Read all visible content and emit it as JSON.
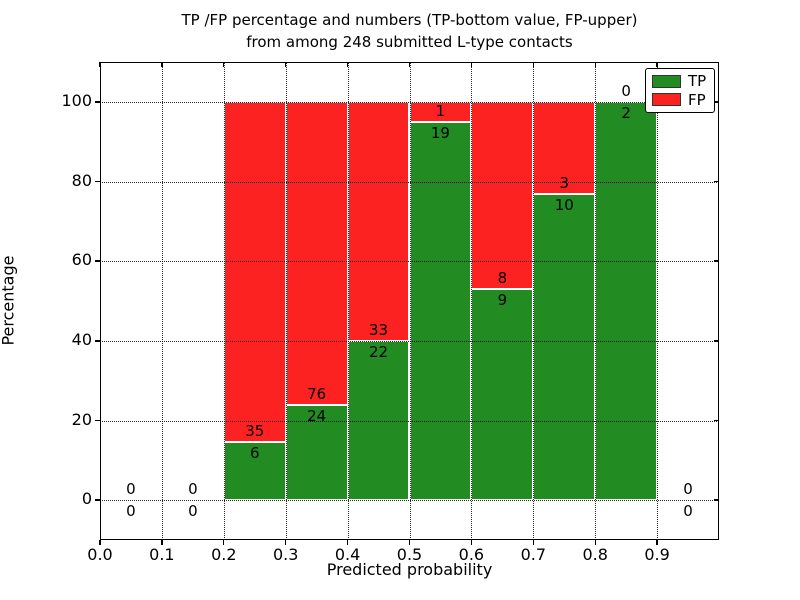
{
  "title": {
    "line1": "TP /FP percentage and numbers (TP-bottom value, FP-upper)",
    "line2": "from among 248 submitted L-type contacts"
  },
  "chart_data": {
    "type": "bar",
    "stacked": true,
    "normalized": "percent",
    "title": "TP /FP percentage and numbers (TP-bottom value, FP-upper) from among 248 submitted L-type contacts",
    "xlabel": "Predicted probability",
    "ylabel": "Percentage",
    "xlim": [
      0.0,
      1.0
    ],
    "ylim": [
      -10,
      110
    ],
    "grid": {
      "style": "dotted",
      "color": "#000000",
      "above_bars": true
    },
    "x_ticks": [
      {
        "value": 0.0,
        "label": "0.0"
      },
      {
        "value": 0.1,
        "label": "0.1"
      },
      {
        "value": 0.2,
        "label": "0.2"
      },
      {
        "value": 0.3,
        "label": "0.3"
      },
      {
        "value": 0.4,
        "label": "0.4"
      },
      {
        "value": 0.5,
        "label": "0.5"
      },
      {
        "value": 0.6,
        "label": "0.6"
      },
      {
        "value": 0.7,
        "label": "0.7"
      },
      {
        "value": 0.8,
        "label": "0.8"
      },
      {
        "value": 0.9,
        "label": "0.9"
      }
    ],
    "y_ticks": [
      {
        "value": 0,
        "label": "0"
      },
      {
        "value": 20,
        "label": "20"
      },
      {
        "value": 40,
        "label": "40"
      },
      {
        "value": 60,
        "label": "60"
      },
      {
        "value": 80,
        "label": "80"
      },
      {
        "value": 100,
        "label": "100"
      }
    ],
    "colors": {
      "tp": "#228b22",
      "fp": "#fc2222"
    },
    "legend": {
      "position": "upper right",
      "entries": [
        {
          "label": "TP",
          "color": "#228b22"
        },
        {
          "label": "FP",
          "color": "#fc2222"
        }
      ]
    },
    "bins": [
      {
        "range": [
          0.0,
          0.1
        ],
        "tp": 0,
        "fp": 0,
        "tp_percent": 0
      },
      {
        "range": [
          0.1,
          0.2
        ],
        "tp": 0,
        "fp": 0,
        "tp_percent": 0
      },
      {
        "range": [
          0.2,
          0.3
        ],
        "tp": 6,
        "fp": 35,
        "tp_percent": 14.6
      },
      {
        "range": [
          0.3,
          0.4
        ],
        "tp": 24,
        "fp": 76,
        "tp_percent": 24.0
      },
      {
        "range": [
          0.4,
          0.5
        ],
        "tp": 22,
        "fp": 33,
        "tp_percent": 40.0
      },
      {
        "range": [
          0.5,
          0.6
        ],
        "tp": 19,
        "fp": 1,
        "tp_percent": 95.0
      },
      {
        "range": [
          0.6,
          0.7
        ],
        "tp": 9,
        "fp": 8,
        "tp_percent": 52.9
      },
      {
        "range": [
          0.7,
          0.8
        ],
        "tp": 10,
        "fp": 3,
        "tp_percent": 76.9
      },
      {
        "range": [
          0.8,
          0.9
        ],
        "tp": 2,
        "fp": 0,
        "tp_percent": 100.0
      },
      {
        "range": [
          0.9,
          1.0
        ],
        "tp": 0,
        "fp": 0,
        "tp_percent": 0
      }
    ]
  }
}
